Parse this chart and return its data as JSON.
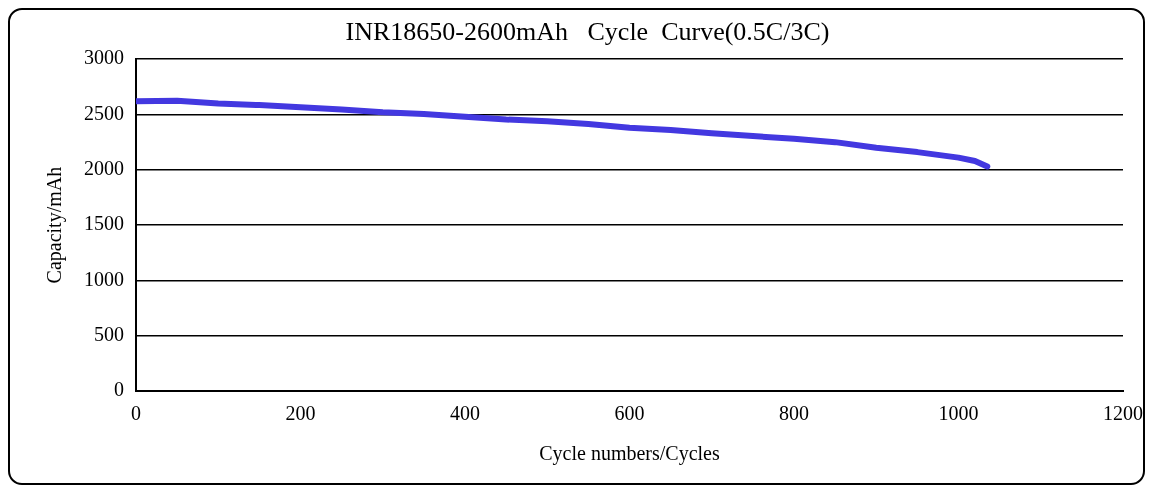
{
  "chart_data": {
    "type": "line",
    "title": "INR18650-2600mAh   Cycle  Curve(0.5C/3C)",
    "xlabel": "Cycle numbers/Cycles",
    "ylabel": "Capacity/mAh",
    "x": [
      0,
      50,
      100,
      150,
      200,
      250,
      300,
      350,
      400,
      450,
      500,
      550,
      600,
      650,
      700,
      750,
      800,
      850,
      900,
      950,
      1000,
      1020,
      1035
    ],
    "series": [
      {
        "color": "#4338e0",
        "values": [
          2620,
          2625,
          2600,
          2585,
          2565,
          2545,
          2520,
          2505,
          2480,
          2455,
          2440,
          2415,
          2380,
          2360,
          2330,
          2305,
          2280,
          2250,
          2200,
          2160,
          2110,
          2080,
          2030
        ]
      }
    ],
    "xlim": [
      0,
      1200
    ],
    "xticks": [
      0,
      200,
      400,
      600,
      800,
      1000,
      1200
    ],
    "ylim": [
      0,
      3000
    ],
    "yticks": [
      0,
      500,
      1000,
      1500,
      2000,
      2500,
      3000
    ],
    "grid": "y",
    "legend": false
  }
}
